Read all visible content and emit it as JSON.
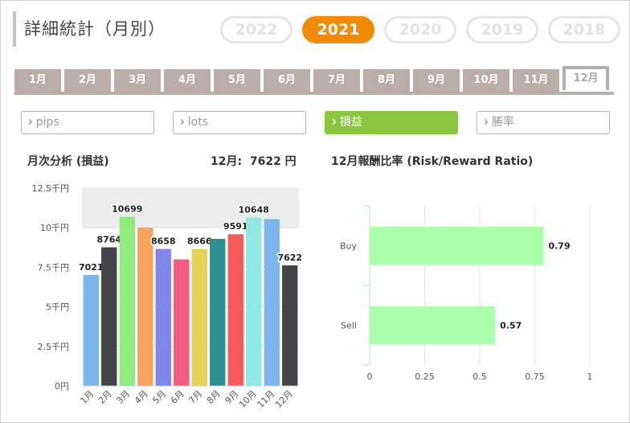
{
  "page": {
    "title": "詳細統計（月別）"
  },
  "years": [
    {
      "label": "2022",
      "active": false
    },
    {
      "label": "2021",
      "active": true
    },
    {
      "label": "2020",
      "active": false
    },
    {
      "label": "2019",
      "active": false
    },
    {
      "label": "2018",
      "active": false
    }
  ],
  "months": [
    {
      "label": "1月",
      "active": false
    },
    {
      "label": "2月",
      "active": false
    },
    {
      "label": "3月",
      "active": false
    },
    {
      "label": "4月",
      "active": false
    },
    {
      "label": "5月",
      "active": false
    },
    {
      "label": "6月",
      "active": false
    },
    {
      "label": "7月",
      "active": false
    },
    {
      "label": "8月",
      "active": false
    },
    {
      "label": "9月",
      "active": false
    },
    {
      "label": "10月",
      "active": false
    },
    {
      "label": "11月",
      "active": false
    },
    {
      "label": "12月",
      "active": true
    }
  ],
  "metrics": [
    {
      "label": "pips",
      "active": false
    },
    {
      "label": "lots",
      "active": false
    },
    {
      "label": "損益",
      "active": true
    },
    {
      "label": "勝率",
      "active": false
    }
  ],
  "colors": {
    "accent": "#f28a06",
    "active_metric": "#8cc63e",
    "tab": "#b9aeaa",
    "ratio_bar": "#aaffaa"
  },
  "monthly": {
    "heading": "月次分析 (損益)",
    "total_label": "12月:",
    "total_value": "7622 円"
  },
  "ratio": {
    "heading": "12月報酬比率 (Risk/Reward Ratio)"
  },
  "chart_data": [
    {
      "type": "bar",
      "title": "月次分析 (損益)",
      "categories": [
        "1月",
        "2月",
        "3月",
        "4月",
        "5月",
        "6月",
        "7月",
        "8月",
        "9月",
        "10月",
        "11月",
        "12月"
      ],
      "values": [
        7021,
        8764,
        10699,
        10000,
        8658,
        8000,
        8666,
        9300,
        9591,
        10648,
        10550,
        7622
      ],
      "data_labels": [
        "7021",
        "8764",
        "10699",
        "",
        "8658",
        "",
        "8666",
        "",
        "9591",
        "10648",
        "",
        "7622"
      ],
      "bar_colors": [
        "#7cb5ec",
        "#434348",
        "#90ed7d",
        "#f7a35c",
        "#8085e9",
        "#f15c80",
        "#e4d354",
        "#2b908f",
        "#f45b5b",
        "#91e8e1",
        "#7cb5ec",
        "#434348"
      ],
      "y_ticks": [
        "0円",
        "2.5千円",
        "5千円",
        "7.5千円",
        "10千円",
        "12.5千円"
      ],
      "ylim": [
        0,
        12500
      ],
      "highlight_band": [
        10000,
        12500
      ]
    },
    {
      "type": "bar",
      "orientation": "horizontal",
      "title": "12月報酬比率 (Risk/Reward Ratio)",
      "categories": [
        "Buy",
        "Sell"
      ],
      "values": [
        0.79,
        0.57
      ],
      "data_labels": [
        "0.79",
        "0.57"
      ],
      "x_ticks": [
        "0",
        "0.25",
        "0.5",
        "0.75",
        "1"
      ],
      "xlim": [
        0,
        1
      ]
    }
  ]
}
